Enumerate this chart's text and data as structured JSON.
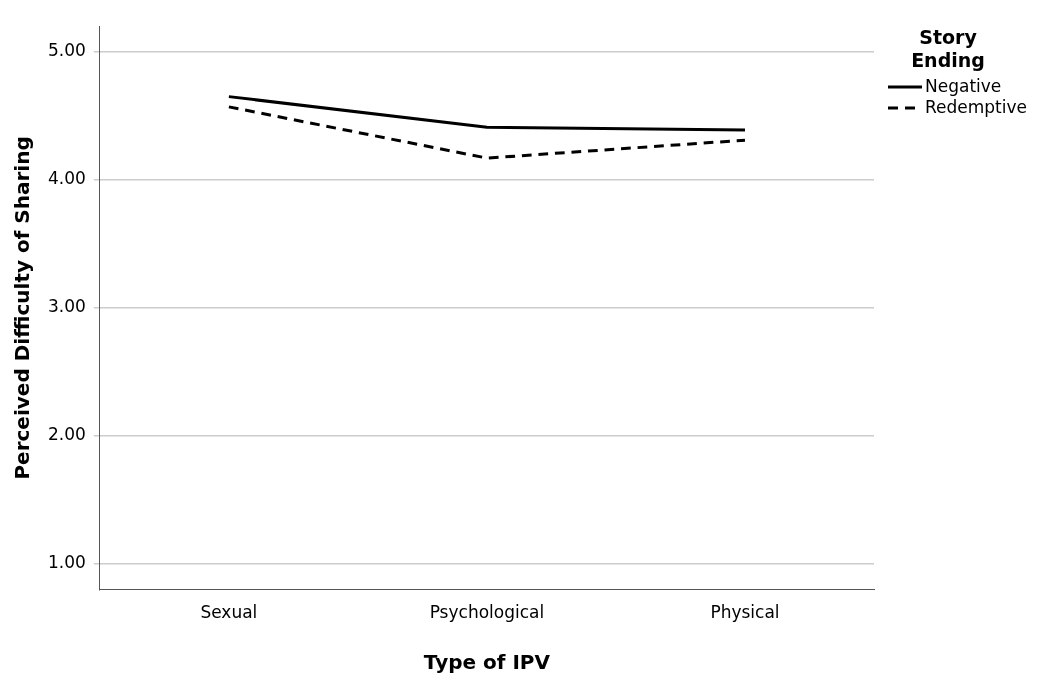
{
  "chart_data": {
    "type": "line",
    "xlabel": "Type of IPV",
    "ylabel": "Perceived Difficulty of Sharing",
    "legend_title": "Story Ending",
    "categories": [
      "Sexual",
      "Psychological",
      "Physical"
    ],
    "series": [
      {
        "name": "Negative",
        "color": "#000000",
        "values": [
          4.65,
          4.41,
          4.39
        ],
        "line_style": "solid"
      },
      {
        "name": "Redemptive",
        "color": "#000000",
        "values": [
          4.57,
          4.17,
          4.31
        ],
        "line_style": "dashed"
      }
    ],
    "ylim": [
      0.8,
      5.2
    ],
    "yticks": [
      {
        "value": 1,
        "label": "1.00"
      },
      {
        "value": 2,
        "label": "2.00"
      },
      {
        "value": 3,
        "label": "3.00"
      },
      {
        "value": 4,
        "label": "4.00"
      },
      {
        "value": 5,
        "label": "5.00"
      }
    ],
    "grid": "y",
    "legend": "top right",
    "marker": "none"
  }
}
